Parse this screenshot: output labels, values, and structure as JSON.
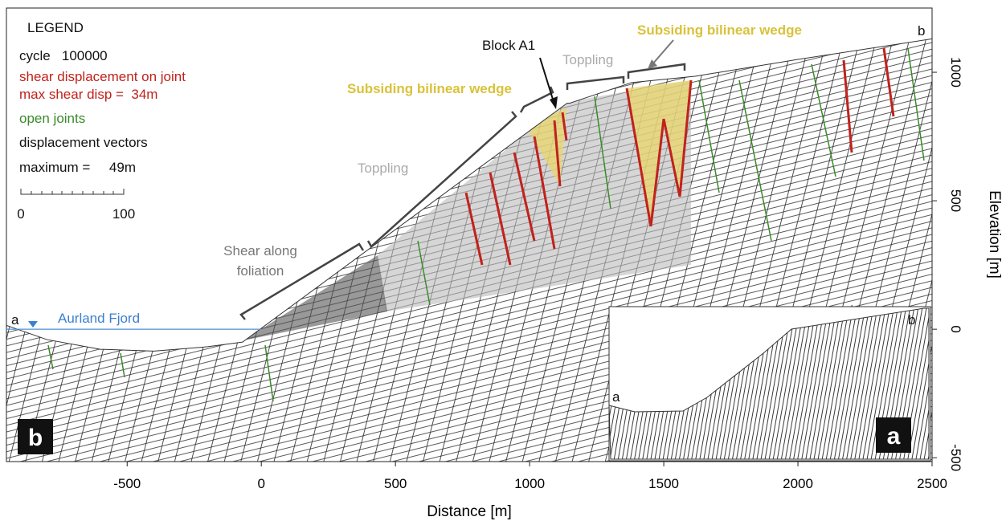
{
  "chart_data": {
    "type": "cross-section",
    "xlabel": "Distance [m]",
    "ylabel": "Elevation [m]",
    "xlim": [
      -950,
      2500
    ],
    "ylim": [
      -515,
      1250
    ],
    "xticks": [
      -500,
      0,
      500,
      1000,
      1500,
      2000,
      2500
    ],
    "yticks": [
      -500,
      0,
      500,
      1000
    ],
    "surface": {
      "x": [
        -950,
        -800,
        -600,
        -400,
        -200,
        -70,
        1140,
        1150,
        1380,
        1620,
        2000,
        2500
      ],
      "y": [
        15,
        -40,
        -78,
        -85,
        -68,
        -50,
        880,
        880,
        960,
        985,
        1050,
        1130
      ]
    },
    "water_level": 0,
    "legend": {
      "title": "LEGEND",
      "cycle": "cycle   100000",
      "shear": "shear displacement on joint",
      "max_shear": "max shear disp =  34m",
      "open": "open joints",
      "vectors": "displacement vectors",
      "max_vectors": "maximum =     49m",
      "scale_labels": [
        "0",
        "100"
      ]
    },
    "annotations": {
      "block": "Block A1",
      "toppling_upper": "Toppling",
      "toppling_lower": "Toppling",
      "wedge_upper": "Subsiding bilinear wedge",
      "wedge_lower": "Subsiding bilinear wedge",
      "shear_line1": "Shear along",
      "shear_line2": "foliation",
      "fjord": "Aurland Fjord"
    },
    "panel_label": "b",
    "profile_ends": [
      "a",
      "b"
    ],
    "inset": {
      "panel_label": "a",
      "profile_ends": [
        "a",
        "b"
      ]
    }
  }
}
